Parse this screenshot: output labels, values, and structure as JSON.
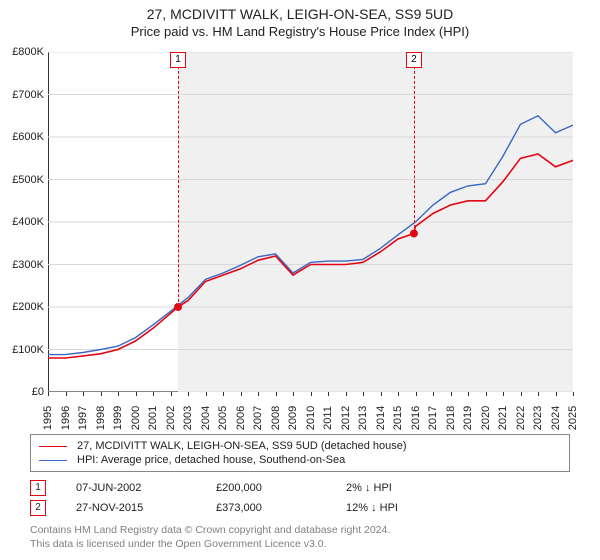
{
  "title_line1": "27, MCDIVITT WALK, LEIGH-ON-SEA, SS9 5UD",
  "title_line2": "Price paid vs. HM Land Registry's House Price Index (HPI)",
  "chart": {
    "type": "line",
    "background_color": "#ffffff",
    "grid_color": "#d9d9d9",
    "axis_color": "#333333",
    "ylim": [
      0,
      800000
    ],
    "ytick_step": 100000,
    "xlim": [
      1995,
      2025
    ],
    "xtick_step": 1,
    "series1": {
      "label": "27, MCDIVITT WALK, LEIGH-ON-SEA, SS9 5UD (detached house)",
      "color": "#e30613",
      "line_width": 1.6,
      "x": [
        1995,
        1996,
        1997,
        1998,
        1999,
        2000,
        2001,
        2002,
        2002.43,
        2003,
        2004,
        2005,
        2006,
        2007,
        2008,
        2009,
        2010,
        2011,
        2012,
        2013,
        2014,
        2015,
        2015.91,
        2016,
        2017,
        2018,
        2019,
        2020,
        2021,
        2022,
        2023,
        2024,
        2025
      ],
      "y": [
        80000,
        80000,
        85000,
        90000,
        100000,
        120000,
        150000,
        185000,
        200000,
        215000,
        260000,
        275000,
        290000,
        310000,
        320000,
        275000,
        300000,
        300000,
        300000,
        305000,
        330000,
        360000,
        373000,
        390000,
        420000,
        440000,
        450000,
        450000,
        495000,
        550000,
        560000,
        530000,
        545000
      ]
    },
    "series2": {
      "label": "HPI: Average price, detached house, Southend-on-Sea",
      "color": "#3a66c4",
      "line_width": 1.4,
      "x": [
        1995,
        1996,
        1997,
        1998,
        1999,
        2000,
        2001,
        2002,
        2003,
        2004,
        2005,
        2006,
        2007,
        2008,
        2009,
        2010,
        2011,
        2012,
        2013,
        2014,
        2015,
        2016,
        2017,
        2018,
        2019,
        2020,
        2021,
        2022,
        2023,
        2024,
        2025
      ],
      "y": [
        88000,
        88000,
        93000,
        100000,
        108000,
        128000,
        158000,
        190000,
        222000,
        265000,
        280000,
        298000,
        318000,
        325000,
        280000,
        305000,
        308000,
        308000,
        312000,
        338000,
        370000,
        400000,
        440000,
        470000,
        485000,
        490000,
        555000,
        630000,
        650000,
        610000,
        628000
      ]
    },
    "markers": [
      {
        "x": 2002.43,
        "y": 200000,
        "label": "1",
        "color": "#e30613"
      },
      {
        "x": 2015.91,
        "y": 373000,
        "label": "2",
        "color": "#e30613"
      }
    ],
    "shade_color": "#f0f0f0",
    "shade_ranges": [
      [
        2002.43,
        2015.91
      ],
      [
        2015.91,
        2025
      ]
    ]
  },
  "ylabels": [
    "£0",
    "£100K",
    "£200K",
    "£300K",
    "£400K",
    "£500K",
    "£600K",
    "£700K",
    "£800K"
  ],
  "xlabels": [
    "1995",
    "1996",
    "1997",
    "1998",
    "1999",
    "2000",
    "2001",
    "2002",
    "2003",
    "2004",
    "2005",
    "2006",
    "2007",
    "2008",
    "2009",
    "2010",
    "2011",
    "2012",
    "2013",
    "2014",
    "2015",
    "2016",
    "2017",
    "2018",
    "2019",
    "2020",
    "2021",
    "2022",
    "2023",
    "2024",
    "2025"
  ],
  "events": [
    {
      "n": "1",
      "date": "07-JUN-2002",
      "price": "£200,000",
      "pct": "2% ↓ HPI"
    },
    {
      "n": "2",
      "date": "27-NOV-2015",
      "price": "£373,000",
      "pct": "12% ↓ HPI"
    }
  ],
  "footer_line1": "Contains HM Land Registry data © Crown copyright and database right 2024.",
  "footer_line2": "This data is licensed under the Open Government Licence v3.0."
}
